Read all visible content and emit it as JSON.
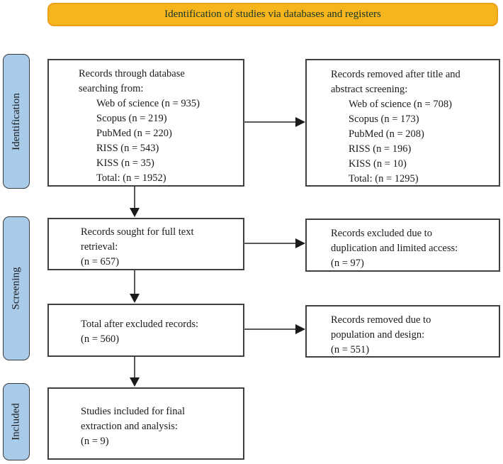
{
  "banner": {
    "label": "Identification of studies via databases and registers"
  },
  "stages": [
    {
      "label": "Identification"
    },
    {
      "label": "Screening"
    },
    {
      "label": "Included"
    }
  ],
  "boxes": {
    "db_search": {
      "head": [
        "Records through database",
        "searching from:"
      ],
      "items": [
        "Web of science (n = 935)",
        "Scopus (n = 219)",
        "PubMed (n = 220)",
        "RISS (n = 543)",
        "KISS (n = 35)",
        "Total: (n = 1952)"
      ]
    },
    "removed_title_abstract": {
      "head": [
        "Records removed after title and",
        "abstract screening:"
      ],
      "items": [
        "Web of science (n = 708)",
        "Scopus (n = 173)",
        "PubMed (n = 208)",
        "RISS (n = 196)",
        "KISS (n = 10)",
        "Total: (n = 1295)"
      ]
    },
    "fulltext_sought": {
      "lines": [
        "Records sought for full text",
        "retrieval:",
        "(n = 657)"
      ]
    },
    "excluded_duplication": {
      "lines": [
        "Records excluded due to",
        "duplication and limited access:",
        "(n = 97)"
      ]
    },
    "total_after_excluded": {
      "lines": [
        "Total after excluded records:",
        "(n = 560)"
      ]
    },
    "removed_population": {
      "lines": [
        "Records removed due to",
        "population and design:",
        "(n = 551)"
      ]
    },
    "included_final": {
      "lines": [
        "Studies included for final",
        "extraction and analysis:",
        "(n = 9)"
      ]
    }
  },
  "colors": {
    "banner_fill": "#f6b51d",
    "banner_border": "#eca019",
    "banner_text": "#17352b",
    "stage_fill": "#a9cbea",
    "stage_border": "#3b3b3b",
    "box_border": "#3f3f3f",
    "arrow_line": "#595959",
    "arrow_head": "#1a1a1a",
    "text": "#1a1a1a"
  }
}
